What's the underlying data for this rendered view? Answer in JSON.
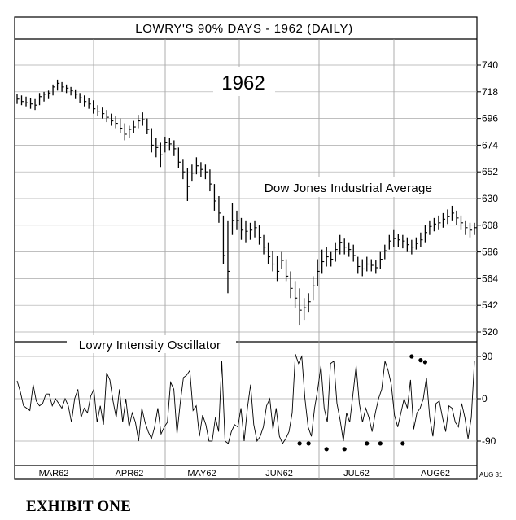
{
  "chart_data": {
    "type": "line",
    "title": "LOWRY'S 90% DAYS - 1962 (DAILY)",
    "year_label": "1962",
    "price_panel": {
      "series_label": "Dow Jones Industrial Average",
      "chart_style": "ohlc-bars",
      "ylim": [
        508,
        750
      ],
      "yticks": [
        740,
        718,
        696,
        674,
        652,
        630,
        608,
        586,
        564,
        542,
        520
      ],
      "bars": [
        {
          "h": 716,
          "l": 708,
          "c": 712
        },
        {
          "h": 715,
          "l": 707,
          "c": 710
        },
        {
          "h": 714,
          "l": 706,
          "c": 709
        },
        {
          "h": 713,
          "l": 704,
          "c": 708
        },
        {
          "h": 712,
          "l": 703,
          "c": 707
        },
        {
          "h": 717,
          "l": 707,
          "c": 714
        },
        {
          "h": 718,
          "l": 710,
          "c": 716
        },
        {
          "h": 719,
          "l": 712,
          "c": 717
        },
        {
          "h": 724,
          "l": 715,
          "c": 722
        },
        {
          "h": 728,
          "l": 719,
          "c": 725
        },
        {
          "h": 726,
          "l": 718,
          "c": 722
        },
        {
          "h": 724,
          "l": 717,
          "c": 721
        },
        {
          "h": 722,
          "l": 715,
          "c": 719
        },
        {
          "h": 720,
          "l": 712,
          "c": 716
        },
        {
          "h": 717,
          "l": 709,
          "c": 713
        },
        {
          "h": 715,
          "l": 706,
          "c": 710
        },
        {
          "h": 713,
          "l": 704,
          "c": 708
        },
        {
          "h": 711,
          "l": 700,
          "c": 704
        },
        {
          "h": 707,
          "l": 698,
          "c": 702
        },
        {
          "h": 705,
          "l": 696,
          "c": 700
        },
        {
          "h": 703,
          "l": 693,
          "c": 697
        },
        {
          "h": 700,
          "l": 690,
          "c": 694
        },
        {
          "h": 698,
          "l": 688,
          "c": 692
        },
        {
          "h": 696,
          "l": 684,
          "c": 688
        },
        {
          "h": 692,
          "l": 678,
          "c": 683
        },
        {
          "h": 690,
          "l": 680,
          "c": 687
        },
        {
          "h": 694,
          "l": 684,
          "c": 689
        },
        {
          "h": 699,
          "l": 688,
          "c": 694
        },
        {
          "h": 701,
          "l": 690,
          "c": 695
        },
        {
          "h": 696,
          "l": 683,
          "c": 687
        },
        {
          "h": 688,
          "l": 668,
          "c": 674
        },
        {
          "h": 680,
          "l": 664,
          "c": 672
        },
        {
          "h": 676,
          "l": 656,
          "c": 666
        },
        {
          "h": 681,
          "l": 668,
          "c": 676
        },
        {
          "h": 680,
          "l": 670,
          "c": 675
        },
        {
          "h": 678,
          "l": 665,
          "c": 671
        },
        {
          "h": 672,
          "l": 655,
          "c": 660
        },
        {
          "h": 662,
          "l": 646,
          "c": 652
        },
        {
          "h": 655,
          "l": 628,
          "c": 640
        },
        {
          "h": 658,
          "l": 644,
          "c": 651
        },
        {
          "h": 664,
          "l": 650,
          "c": 657
        },
        {
          "h": 660,
          "l": 648,
          "c": 654
        },
        {
          "h": 658,
          "l": 646,
          "c": 652
        },
        {
          "h": 654,
          "l": 636,
          "c": 642
        },
        {
          "h": 642,
          "l": 620,
          "c": 628
        },
        {
          "h": 632,
          "l": 610,
          "c": 618
        },
        {
          "h": 616,
          "l": 576,
          "c": 583
        },
        {
          "h": 612,
          "l": 552,
          "c": 570
        },
        {
          "h": 626,
          "l": 600,
          "c": 612
        },
        {
          "h": 620,
          "l": 604,
          "c": 612
        },
        {
          "h": 614,
          "l": 596,
          "c": 604
        },
        {
          "h": 612,
          "l": 594,
          "c": 603
        },
        {
          "h": 610,
          "l": 596,
          "c": 604
        },
        {
          "h": 612,
          "l": 598,
          "c": 606
        },
        {
          "h": 608,
          "l": 592,
          "c": 598
        },
        {
          "h": 600,
          "l": 584,
          "c": 590
        },
        {
          "h": 594,
          "l": 576,
          "c": 582
        },
        {
          "h": 587,
          "l": 570,
          "c": 576
        },
        {
          "h": 583,
          "l": 562,
          "c": 570
        },
        {
          "h": 586,
          "l": 572,
          "c": 579
        },
        {
          "h": 580,
          "l": 562,
          "c": 566
        },
        {
          "h": 570,
          "l": 548,
          "c": 556
        },
        {
          "h": 562,
          "l": 540,
          "c": 548
        },
        {
          "h": 556,
          "l": 526,
          "c": 538
        },
        {
          "h": 548,
          "l": 530,
          "c": 540
        },
        {
          "h": 552,
          "l": 536,
          "c": 545
        },
        {
          "h": 566,
          "l": 546,
          "c": 558
        },
        {
          "h": 580,
          "l": 558,
          "c": 570
        },
        {
          "h": 588,
          "l": 568,
          "c": 578
        },
        {
          "h": 590,
          "l": 574,
          "c": 582
        },
        {
          "h": 586,
          "l": 574,
          "c": 580
        },
        {
          "h": 594,
          "l": 578,
          "c": 588
        },
        {
          "h": 600,
          "l": 584,
          "c": 594
        },
        {
          "h": 597,
          "l": 584,
          "c": 590
        },
        {
          "h": 594,
          "l": 582,
          "c": 588
        },
        {
          "h": 592,
          "l": 578,
          "c": 583
        },
        {
          "h": 582,
          "l": 568,
          "c": 574
        },
        {
          "h": 580,
          "l": 566,
          "c": 572
        },
        {
          "h": 582,
          "l": 570,
          "c": 576
        },
        {
          "h": 580,
          "l": 570,
          "c": 575
        },
        {
          "h": 579,
          "l": 568,
          "c": 573
        },
        {
          "h": 586,
          "l": 572,
          "c": 580
        },
        {
          "h": 592,
          "l": 580,
          "c": 587
        },
        {
          "h": 600,
          "l": 588,
          "c": 595
        },
        {
          "h": 604,
          "l": 590,
          "c": 597
        },
        {
          "h": 601,
          "l": 590,
          "c": 596
        },
        {
          "h": 600,
          "l": 589,
          "c": 595
        },
        {
          "h": 598,
          "l": 586,
          "c": 592
        },
        {
          "h": 596,
          "l": 584,
          "c": 590
        },
        {
          "h": 598,
          "l": 588,
          "c": 593
        },
        {
          "h": 602,
          "l": 590,
          "c": 596
        },
        {
          "h": 608,
          "l": 594,
          "c": 602
        },
        {
          "h": 612,
          "l": 600,
          "c": 607
        },
        {
          "h": 614,
          "l": 603,
          "c": 609
        },
        {
          "h": 616,
          "l": 604,
          "c": 610
        },
        {
          "h": 618,
          "l": 606,
          "c": 613
        },
        {
          "h": 621,
          "l": 609,
          "c": 615
        },
        {
          "h": 624,
          "l": 612,
          "c": 618
        },
        {
          "h": 620,
          "l": 608,
          "c": 614
        },
        {
          "h": 616,
          "l": 604,
          "c": 610
        },
        {
          "h": 612,
          "l": 600,
          "c": 606
        },
        {
          "h": 610,
          "l": 598,
          "c": 604
        },
        {
          "h": 610,
          "l": 600,
          "c": 606
        }
      ]
    },
    "oscillator_panel": {
      "series_label": "Lowry Intensity Oscillator",
      "ylim": [
        -112,
        112
      ],
      "yticks": [
        90,
        0,
        -90
      ],
      "values": [
        38,
        15,
        -15,
        -20,
        -25,
        30,
        -5,
        -15,
        -10,
        10,
        10,
        -15,
        0,
        -10,
        -20,
        0,
        -15,
        -50,
        0,
        20,
        -40,
        -20,
        -30,
        5,
        20,
        -50,
        -15,
        -55,
        55,
        40,
        -5,
        -40,
        20,
        -50,
        0,
        -60,
        -30,
        -50,
        -90,
        -20,
        -50,
        -70,
        -85,
        -60,
        -20,
        -75,
        -60,
        -50,
        35,
        20,
        -75,
        -10,
        45,
        50,
        60,
        -25,
        -15,
        -80,
        -35,
        -55,
        -90,
        -90,
        -40,
        -70,
        80,
        -90,
        -95,
        -70,
        -55,
        -60,
        -20,
        -90,
        -20,
        30,
        -55,
        -90,
        -80,
        -60,
        -15,
        0,
        -65,
        -20,
        -80,
        -95,
        -85,
        -70,
        -30,
        95,
        75,
        90,
        0,
        -60,
        -80,
        -20,
        20,
        70,
        -20,
        -50,
        75,
        80,
        -10,
        -45,
        -90,
        -30,
        -50,
        10,
        70,
        -10,
        -50,
        -20,
        -40,
        -70,
        -30,
        0,
        20,
        80,
        60,
        30,
        -35,
        -60,
        -30,
        0,
        -20,
        40,
        -65,
        -30,
        -20,
        0,
        45,
        -40,
        -80,
        -10,
        -5,
        -40,
        -70,
        -15,
        -20,
        -50,
        -60,
        -10,
        -40,
        -85,
        -40,
        80
      ],
      "marked_points": [
        {
          "x": 63,
          "y": -95
        },
        {
          "x": 65,
          "y": -95
        },
        {
          "x": 69,
          "y": -107
        },
        {
          "x": 73,
          "y": -107
        },
        {
          "x": 78,
          "y": -95
        },
        {
          "x": 81,
          "y": -95
        },
        {
          "x": 86,
          "y": -95
        },
        {
          "x": 88,
          "y": 90
        },
        {
          "x": 90,
          "y": 82
        },
        {
          "x": 91,
          "y": 78
        }
      ]
    },
    "x_axis": {
      "month_labels": [
        "MAR62",
        "APR62",
        "MAY62",
        "JUN62",
        "JUL62",
        "AUG62"
      ],
      "end_label": "AUG 31"
    },
    "grid": true
  },
  "caption": "EXHIBIT ONE"
}
